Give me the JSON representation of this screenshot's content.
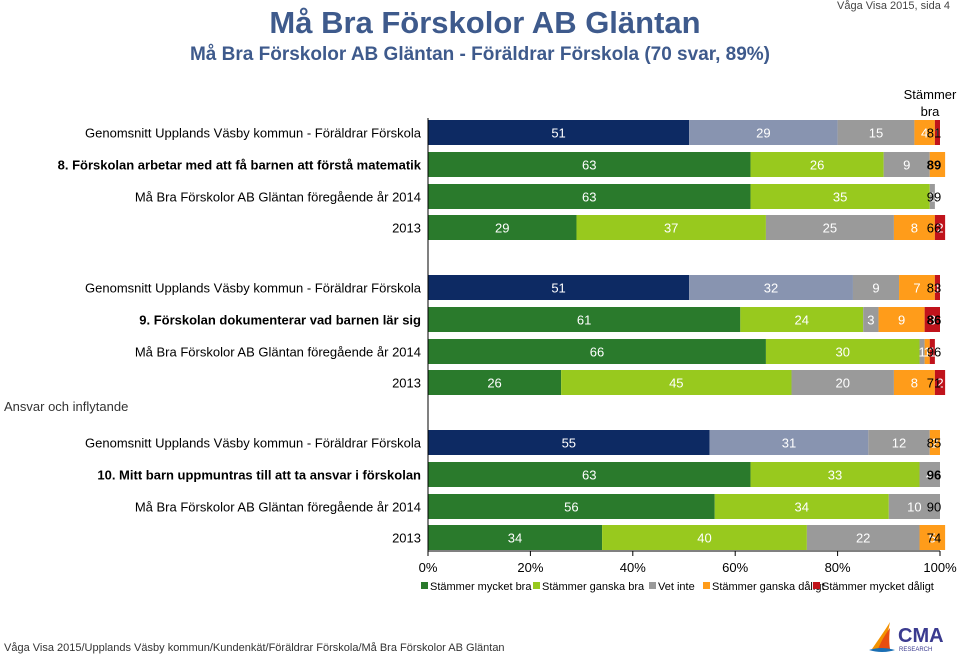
{
  "header": {
    "title": "Må Bra Förskolor AB Gläntan",
    "subtitle": "Må Bra Förskolor AB Gläntan - Föräldrar Förskola (70 svar, 89%)",
    "page_ref": "Våga Visa 2015, sida 4",
    "extra_column_header": "Stämmer bra"
  },
  "side_label": "Ansvar och inflytande",
  "footer": {
    "text": "Våga Visa 2015/Upplands Väsby kommun/Kundenkät/Föräldrar Förskola/Må Bra Förskolor AB Gläntan",
    "logo_text": "CMA",
    "logo_subtext": "RESEARCH"
  },
  "chart_data": {
    "type": "bar",
    "orientation": "horizontal-stacked-100",
    "xlim": [
      0,
      100
    ],
    "xticks": [
      "0%",
      "20%",
      "40%",
      "60%",
      "80%",
      "100%"
    ],
    "legend": {
      "placement": "bottom",
      "entries": [
        "Stämmer mycket bra",
        "Stämmer ganska bra",
        "Vet inte",
        "Stämmer ganska dåligt",
        "Stämmer mycket dåligt"
      ]
    },
    "colors": [
      "#0d2a63",
      "#8894b0",
      "#9a9a9a",
      "#ff9c1a",
      "#c0131b"
    ],
    "colors_school": [
      "#2a7a2c",
      "#98c91e",
      "#9a9a9a",
      "#ff9c1a",
      "#c0131b"
    ],
    "rows": [
      {
        "label": "Genomsnitt Upplands Väsby kommun - Föräldrar Förskola",
        "palette": "kommun",
        "values": [
          51,
          29,
          15,
          4,
          1
        ],
        "value_labels": [
          "51",
          "29",
          "15",
          "4",
          "1"
        ],
        "stammer_bra": "81"
      },
      {
        "label": "8. Förskolan arbetar med att få barnen att förstå matematik",
        "palette": "school",
        "bold": true,
        "values": [
          63,
          26,
          9,
          3,
          0
        ],
        "value_labels": [
          "63",
          "26",
          "9",
          "3",
          "0"
        ],
        "stammer_bra": "89"
      },
      {
        "label": "Må Bra Förskolor AB Gläntan föregående år 2014",
        "palette": "school",
        "values": [
          63,
          35,
          1,
          0,
          0
        ],
        "value_labels": [
          "63",
          "35",
          "1",
          "0",
          ""
        ],
        "stammer_bra": "99"
      },
      {
        "label": "2013",
        "palette": "school",
        "values": [
          29,
          37,
          25,
          8,
          2
        ],
        "value_labels": [
          "29",
          "37",
          "25",
          "8",
          "2"
        ],
        "stammer_bra": "66"
      },
      {
        "label": "Genomsnitt Upplands Väsby kommun - Föräldrar Förskola",
        "palette": "kommun",
        "values": [
          51,
          32,
          9,
          7,
          1
        ],
        "value_labels": [
          "51",
          "32",
          "9",
          "7",
          "1"
        ],
        "stammer_bra": "83"
      },
      {
        "label": "9. Förskolan dokumenterar vad barnen lär sig",
        "palette": "school",
        "bold": true,
        "values": [
          61,
          24,
          3,
          9,
          3
        ],
        "value_labels": [
          "61",
          "24",
          "3",
          "9",
          "3"
        ],
        "stammer_bra": "86"
      },
      {
        "label": "Må Bra Förskolor AB Gläntan föregående år 2014",
        "palette": "school",
        "values": [
          66,
          30,
          1,
          1,
          1
        ],
        "value_labels": [
          "66",
          "30",
          "1",
          "1",
          "1"
        ],
        "stammer_bra": "96"
      },
      {
        "label": "2013",
        "palette": "school",
        "values": [
          26,
          45,
          20,
          8,
          2
        ],
        "value_labels": [
          "26",
          "45",
          "20",
          "8",
          "2"
        ],
        "stammer_bra": "71"
      },
      {
        "label": "Genomsnitt Upplands Väsby kommun - Föräldrar Förskola",
        "palette": "kommun",
        "values": [
          55,
          31,
          12,
          2,
          0
        ],
        "value_labels": [
          "55",
          "31",
          "12",
          "2",
          "0"
        ],
        "stammer_bra": "85"
      },
      {
        "label": "10. Mitt barn uppmuntras till att ta ansvar i förskolan",
        "palette": "school",
        "bold": true,
        "values": [
          63,
          33,
          4,
          0,
          0
        ],
        "value_labels": [
          "63",
          "33",
          "4",
          "0",
          ""
        ],
        "stammer_bra": "96"
      },
      {
        "label": "Må Bra Förskolor AB Gläntan föregående år 2014",
        "palette": "school",
        "values": [
          56,
          34,
          10,
          0,
          0
        ],
        "value_labels": [
          "56",
          "34",
          "10",
          "0",
          ""
        ],
        "stammer_bra": "90"
      },
      {
        "label": "2013",
        "palette": "school",
        "values": [
          34,
          40,
          22,
          5,
          0
        ],
        "value_labels": [
          "34",
          "40",
          "22",
          "5",
          "0"
        ],
        "stammer_bra": "74"
      }
    ]
  }
}
